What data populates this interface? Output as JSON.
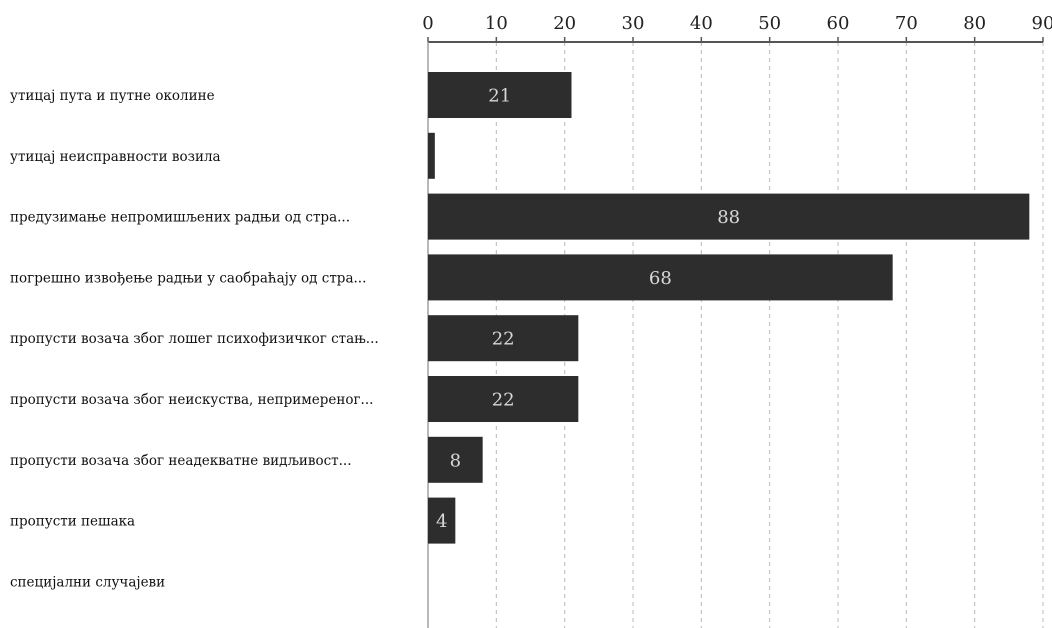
{
  "chart_data": {
    "type": "bar",
    "orientation": "horizontal",
    "categories": [
      "утицај пута и путне околине",
      "утицај неисправности возила",
      "предузимање непромишљених радњи од стра...",
      "погрешно извођење радњи у саобраћају од стра...",
      "пропусти возача због лошег психофизичког стањ...",
      "пропусти возача због неискуства, непримереног...",
      "пропусти возача због неадекватне видљивост...",
      "пропусти пешака",
      "специјални случајеви"
    ],
    "values": [
      21,
      1,
      88,
      68,
      22,
      22,
      8,
      4,
      0
    ],
    "data_labels": [
      "21",
      "",
      "88",
      "68",
      "22",
      "22",
      "8",
      "4",
      ""
    ],
    "xlim": [
      0,
      90
    ],
    "ticks": [
      0,
      10,
      20,
      30,
      40,
      50,
      60,
      70,
      80,
      90
    ],
    "tick_labels": [
      "0",
      "10",
      "20",
      "30",
      "40",
      "50",
      "60",
      "70",
      "80",
      "90"
    ],
    "axis_position": "top",
    "grid": "vertical dashed",
    "legend": "none",
    "bar_color": "#2d2d2d",
    "label_color": "#d8d8d8"
  }
}
